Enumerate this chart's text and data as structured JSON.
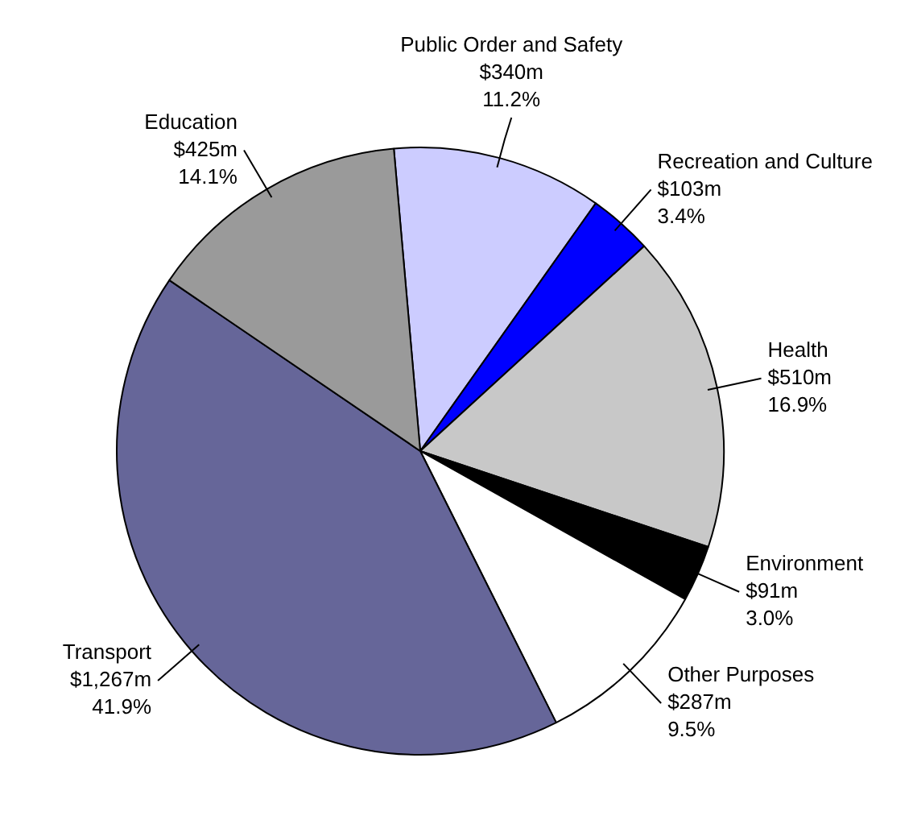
{
  "chart_data": {
    "type": "pie",
    "categories": [
      "Public Order and Safety",
      "Recreation and Culture",
      "Health",
      "Environment",
      "Other Purposes",
      "Transport",
      "Education"
    ],
    "values": [
      11.2,
      3.4,
      16.9,
      3.0,
      9.5,
      41.9,
      14.1
    ],
    "colors": [
      "#ccccff",
      "#0000ff",
      "#c8c8c8",
      "#000000",
      "#ffffff",
      "#666699",
      "#9a9a9a"
    ],
    "value_labels": [
      "$340m\n11.2%",
      "$103m\n3.4%",
      "$510m\n16.9%",
      "$91m\n3.0%",
      "$287m\n9.5%",
      "$1,267m\n41.9%",
      "$425m\n14.1%"
    ]
  }
}
